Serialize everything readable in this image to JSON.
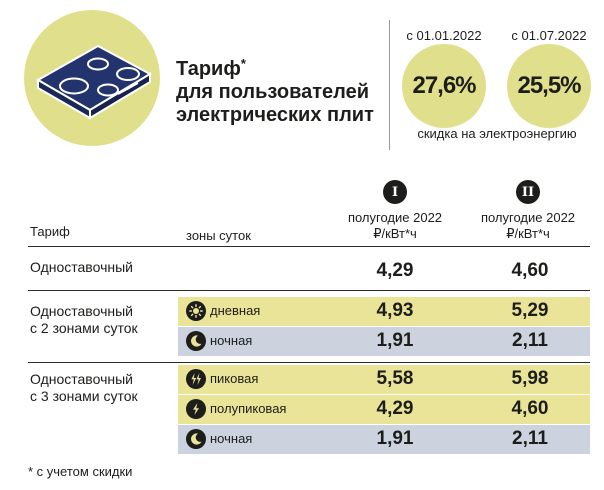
{
  "header": {
    "title_lines": [
      "Тариф",
      "для пользователей",
      "электрических плит"
    ],
    "title_mark": "*",
    "date_1": "с 01.01.2022",
    "date_2": "с 01.07.2022",
    "discount_1": "27,6%",
    "discount_2": "25,5%",
    "discount_note": "скидка на электроэнергию"
  },
  "colors": {
    "accent_yellow": "#e0e08c",
    "band_yellow": "#e9e497",
    "band_blue": "#ccd2de",
    "stove_navy": "#23336e",
    "ink": "#1d1d1b"
  },
  "table": {
    "head": {
      "tariff": "Тариф",
      "zones": "зоны суток",
      "col1_roman": "I",
      "col2_roman": "II",
      "col1_line1": "полугодие 2022",
      "col2_line1": "полугодие 2022",
      "unit": "₽/кВт*ч"
    },
    "groups": [
      {
        "title_lines": [
          "Одноставочный"
        ],
        "rows": [
          {
            "zone": "",
            "icon": "",
            "v1": "4,29",
            "v2": "4,60"
          }
        ]
      },
      {
        "title_lines": [
          "Одноставочный",
          "с 2 зонами суток"
        ],
        "rows": [
          {
            "zone": "дневная",
            "icon": "sun-icon",
            "v1": "4,93",
            "v2": "5,29"
          },
          {
            "zone": "ночная",
            "icon": "moon-icon",
            "v1": "1,91",
            "v2": "2,11"
          }
        ]
      },
      {
        "title_lines": [
          "Одноставочный",
          "с 3 зонами суток"
        ],
        "rows": [
          {
            "zone": "пиковая",
            "icon": "double-lightning-icon",
            "v1": "5,58",
            "v2": "5,98"
          },
          {
            "zone": "полупиковая",
            "icon": "lightning-icon",
            "v1": "4,29",
            "v2": "4,60"
          },
          {
            "zone": "ночная",
            "icon": "moon-icon",
            "v1": "1,91",
            "v2": "2,11"
          }
        ]
      }
    ]
  },
  "footnote": "* с учетом скидки"
}
